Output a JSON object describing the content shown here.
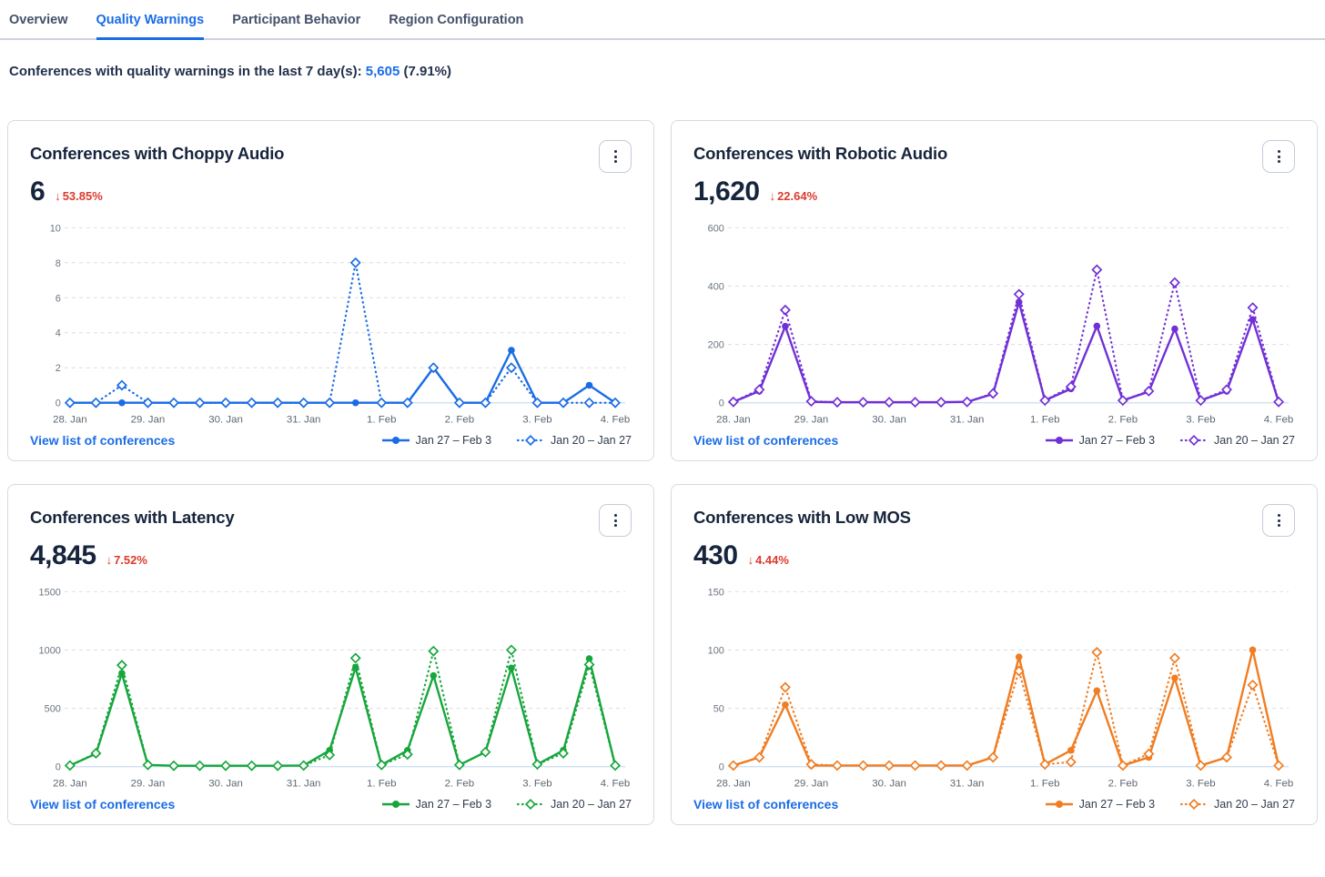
{
  "tabs": [
    {
      "label": "Overview",
      "active": false
    },
    {
      "label": "Quality Warnings",
      "active": true
    },
    {
      "label": "Participant Behavior",
      "active": false
    },
    {
      "label": "Region Configuration",
      "active": false
    }
  ],
  "summary": {
    "text": "Conferences with quality warnings in the last 7 day(s):",
    "count": "5,605",
    "percent": "(7.91%)"
  },
  "link_label": "View list of conferences",
  "legend": {
    "current": "Jan 27 – Feb 3",
    "previous": "Jan 20 – Jan 27"
  },
  "icons": {
    "down_arrow": "↓",
    "kebab_menu": "vertical-three-dots"
  },
  "colors": {
    "blue": "#1a6ce6",
    "purple": "#7130d6",
    "green": "#17a63c",
    "orange": "#f07d22",
    "red": "#dc3a2e",
    "grid_line": "#dcdcdc",
    "zero_line": "#c9ddf3"
  },
  "x_labels": [
    "28. Jan",
    "29. Jan",
    "30. Jan",
    "31. Jan",
    "1. Feb",
    "2. Feb",
    "3. Feb",
    "4. Feb"
  ],
  "chart_data": [
    {
      "type": "line",
      "title": "Conferences with Choppy Audio",
      "value": "6",
      "delta": "53.85%",
      "delta_direction": "down",
      "color": "#1a6ce6",
      "ymax": 10,
      "yticks": [
        0,
        2,
        4,
        6,
        8,
        10
      ],
      "points_per_day": 3,
      "series": [
        {
          "name": "Jan 27 – Feb 3",
          "style": "solid",
          "values": [
            0,
            0,
            0,
            0,
            0,
            0,
            0,
            0,
            0,
            0,
            0,
            0,
            0,
            0,
            2,
            0,
            0,
            3,
            0,
            0,
            1,
            0
          ]
        },
        {
          "name": "Jan 20 – Jan 27",
          "style": "dotted",
          "values": [
            0,
            0,
            1,
            0,
            0,
            0,
            0,
            0,
            0,
            0,
            0,
            8,
            0,
            0,
            2,
            0,
            0,
            2,
            0,
            0,
            0,
            0
          ]
        }
      ]
    },
    {
      "type": "line",
      "title": "Conferences with Robotic Audio",
      "value": "1,620",
      "delta": "22.64%",
      "delta_direction": "down",
      "color": "#7130d6",
      "ymax": 600,
      "yticks": [
        0,
        200,
        400,
        600
      ],
      "points_per_day": 3,
      "series": [
        {
          "name": "Jan 27 – Feb 3",
          "style": "solid",
          "values": [
            3,
            40,
            262,
            3,
            2,
            2,
            2,
            2,
            2,
            3,
            30,
            345,
            8,
            48,
            263,
            8,
            38,
            253,
            8,
            40,
            285,
            3
          ]
        },
        {
          "name": "Jan 20 – Jan 27",
          "style": "dotted",
          "values": [
            3,
            45,
            318,
            5,
            2,
            2,
            2,
            2,
            2,
            3,
            32,
            372,
            8,
            55,
            456,
            8,
            40,
            412,
            8,
            45,
            326,
            3
          ]
        }
      ]
    },
    {
      "type": "line",
      "title": "Conferences with Latency",
      "value": "4,845",
      "delta": "7.52%",
      "delta_direction": "down",
      "color": "#17a63c",
      "ymax": 1500,
      "yticks": [
        0,
        500,
        1000,
        1500
      ],
      "points_per_day": 3,
      "series": [
        {
          "name": "Jan 27 – Feb 3",
          "style": "solid",
          "values": [
            10,
            110,
            800,
            15,
            8,
            8,
            8,
            8,
            8,
            10,
            140,
            850,
            15,
            140,
            780,
            15,
            125,
            845,
            20,
            140,
            925,
            10
          ]
        },
        {
          "name": "Jan 20 – Jan 27",
          "style": "dotted",
          "values": [
            10,
            115,
            870,
            15,
            8,
            8,
            8,
            8,
            8,
            10,
            100,
            930,
            15,
            105,
            990,
            15,
            125,
            1000,
            20,
            115,
            875,
            10
          ]
        }
      ]
    },
    {
      "type": "line",
      "title": "Conferences with Low MOS",
      "value": "430",
      "delta": "4.44%",
      "delta_direction": "down",
      "color": "#f07d22",
      "ymax": 150,
      "yticks": [
        0,
        50,
        100,
        150
      ],
      "points_per_day": 3,
      "series": [
        {
          "name": "Jan 27 – Feb 3",
          "style": "solid",
          "values": [
            1,
            8,
            53,
            1,
            1,
            1,
            1,
            1,
            1,
            1,
            8,
            94,
            2,
            14,
            65,
            1,
            8,
            76,
            1,
            8,
            100,
            1
          ]
        },
        {
          "name": "Jan 20 – Jan 27",
          "style": "dotted",
          "values": [
            1,
            8,
            68,
            2,
            1,
            1,
            1,
            1,
            1,
            1,
            8,
            82,
            2,
            4,
            98,
            1,
            11,
            93,
            1,
            8,
            70,
            1
          ]
        }
      ]
    }
  ]
}
